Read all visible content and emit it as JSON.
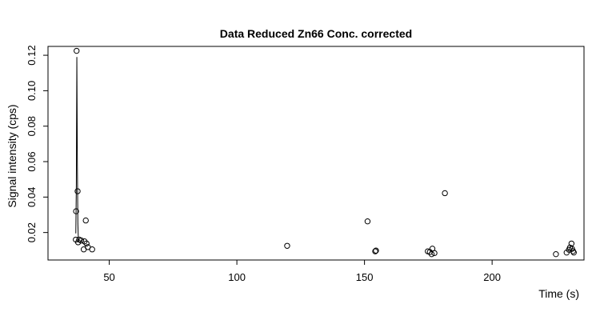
{
  "chart_data": {
    "type": "scatter",
    "title": "Data Reduced Zn66 Conc. corrected",
    "xlabel": "Time (s)",
    "ylabel": "Signal intensity (cps)",
    "xlim": [
      26,
      236
    ],
    "ylim": [
      0.0045,
      0.125
    ],
    "xticks": [
      50,
      100,
      150,
      200
    ],
    "yticks": [
      0.02,
      0.04,
      0.06,
      0.08,
      0.1,
      0.12
    ],
    "ytick_labels": [
      "0.02",
      "0.04",
      "0.06",
      "0.08",
      "0.10",
      "0.12"
    ],
    "grid": false,
    "legend": "none",
    "series": [
      {
        "points": [
          [
            36.9,
            0.016
          ],
          [
            37.0,
            0.032
          ],
          [
            37.2,
            0.1225
          ],
          [
            37.6,
            0.0433
          ],
          [
            37.8,
            0.0145
          ],
          [
            38.2,
            0.016
          ],
          [
            39.0,
            0.0155
          ],
          [
            40.0,
            0.0105
          ],
          [
            40.3,
            0.015
          ],
          [
            40.8,
            0.0268
          ],
          [
            41.1,
            0.0138
          ],
          [
            41.6,
            0.0118
          ],
          [
            43.3,
            0.0105
          ],
          [
            119.7,
            0.0125
          ],
          [
            151.2,
            0.0263
          ],
          [
            154.2,
            0.0094
          ],
          [
            154.5,
            0.0098
          ],
          [
            174.8,
            0.0094
          ],
          [
            175.6,
            0.009
          ],
          [
            176.3,
            0.0078
          ],
          [
            176.6,
            0.0109
          ],
          [
            177.4,
            0.0084
          ],
          [
            181.5,
            0.0422
          ],
          [
            225.0,
            0.0078
          ],
          [
            229.2,
            0.0087
          ],
          [
            230.1,
            0.0103
          ],
          [
            230.5,
            0.0115
          ],
          [
            231.1,
            0.0138
          ],
          [
            231.3,
            0.0108
          ],
          [
            231.7,
            0.0095
          ],
          [
            232.0,
            0.0087
          ]
        ],
        "line": [
          [
            36.9,
            0.0195
          ],
          [
            37.1,
            0.047
          ],
          [
            37.3,
            0.119
          ],
          [
            37.5,
            0.06
          ],
          [
            37.7,
            0.025
          ],
          [
            37.9,
            0.016
          ]
        ]
      }
    ]
  }
}
